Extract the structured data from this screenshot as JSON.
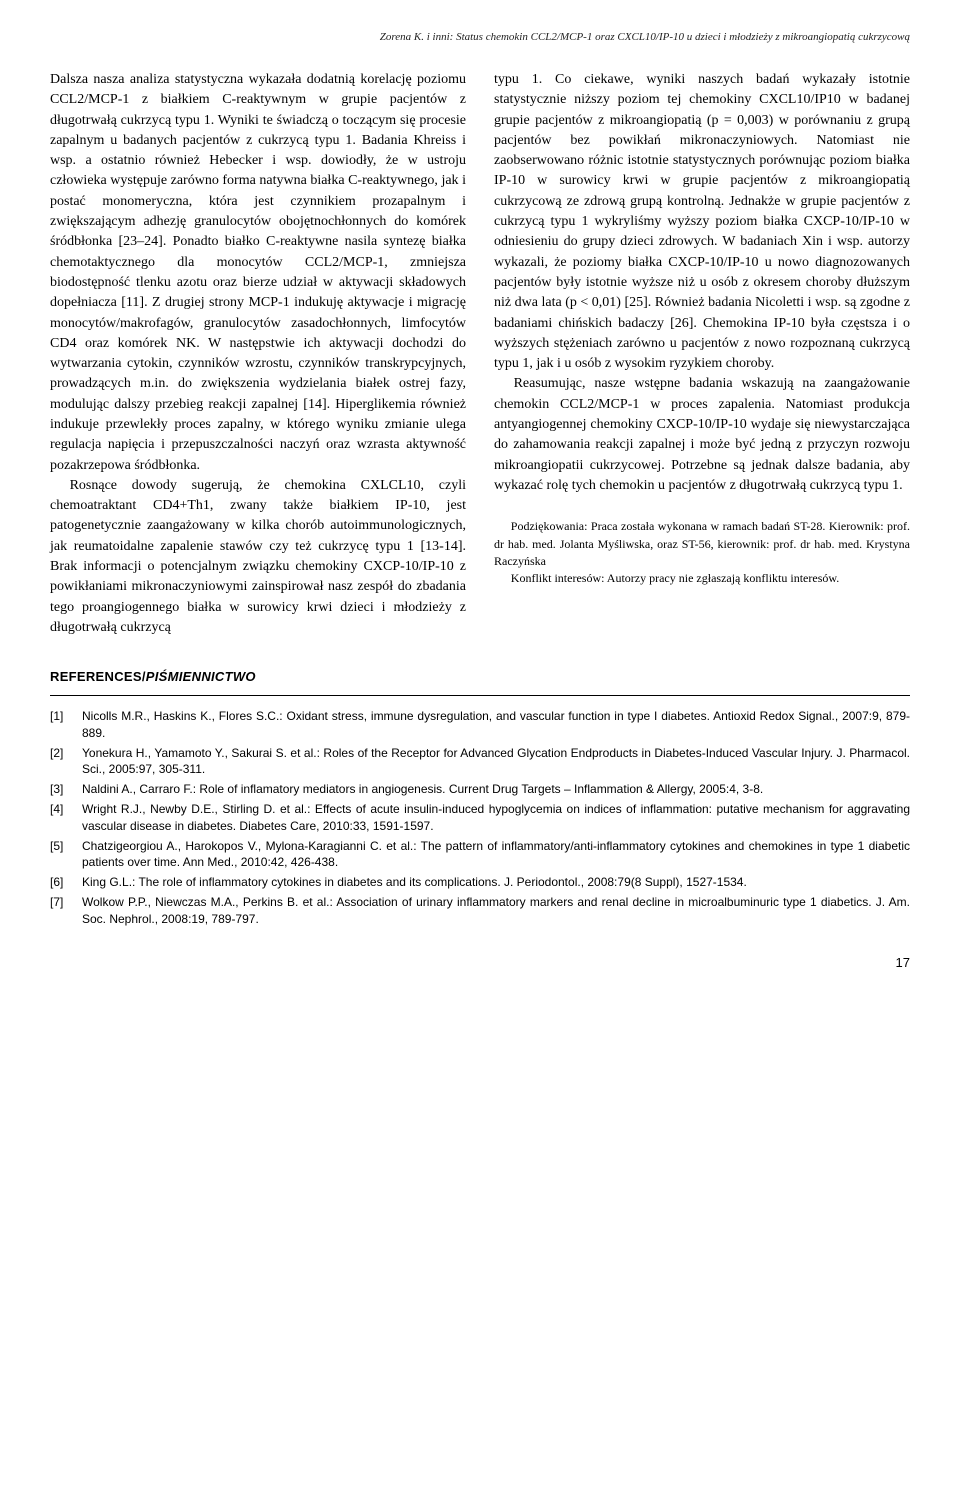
{
  "header": {
    "running_title": "Zorena K. i inni: Status chemokin CCL2/MCP-1 oraz CXCL10/IP-10 u dzieci i młodzieży z mikroangiopatią cukrzycową"
  },
  "body": {
    "left_col": {
      "p1": "Dalsza nasza analiza statystyczna wykazała dodatnią korelację poziomu CCL2/MCP-1 z białkiem C-reaktywnym w grupie pacjentów z długotrwałą cukrzycą typu 1. Wyniki te świadczą o toczącym się procesie zapalnym u badanych pacjentów z cukrzycą typu 1. Badania Khreiss i wsp. a ostatnio również Hebecker i wsp. dowiodły, że w ustroju człowieka występuje zarówno forma natywna białka C-reaktywnego, jak i postać monomeryczna, która jest czynnikiem prozapalnym i zwiększającym adhezję granulocytów obojętnochłonnych do komórek śródbłonka [23–24]. Ponadto białko C-reaktywne nasila syntezę białka chemotaktycznego dla monocytów CCL2/MCP-1, zmniejsza biodostępność tlenku azotu oraz bierze udział w aktywacji składowych dopełniacza [11]. Z drugiej strony MCP-1 indukuję aktywacje i migrację monocytów/makrofagów, granulocytów zasadochłonnych, limfocytów CD4 oraz komórek NK. W następstwie ich aktywacji dochodzi do wytwarzania cytokin, czynników wzrostu, czynników transkrypcyjnych, prowadzących m.in. do zwiększenia wydzielania białek ostrej fazy, modulując dalszy przebieg reakcji zapalnej [14]. Hiperglikemia również indukuje przewlekły proces zapalny, w którego wyniku zmianie ulega regulacja napięcia i przepuszczalności naczyń oraz wzrasta aktywność pozakrzepowa śródbłonka.",
      "p2": "Rosnące dowody sugerują, że chemokina CXLCL10, czyli chemoatraktant CD4+Th1, zwany także białkiem IP-10, jest patogenetycznie zaangażowany w kilka chorób autoimmunologicznych, jak reumatoidalne zapalenie stawów czy też cukrzycę typu 1 [13-14]. Brak informacji o potencjalnym związku chemokiny CXCP-10/IP-10 z powikłaniami mikronaczyniowymi zainspirował nasz zespół do zbadania tego proangiogennego białka w surowicy krwi dzieci i młodzieży z długotrwałą cukrzycą"
    },
    "right_col": {
      "p1": "typu 1. Co ciekawe, wyniki naszych badań wykazały istotnie statystycznie niższy poziom tej chemokiny CXCL10/IP10 w badanej grupie pacjentów z mikroangiopatią (p = 0,003) w porównaniu z grupą pacjentów bez powikłań mikronaczyniowych. Natomiast nie zaobserwowano różnic istotnie statystycznych porównując poziom białka IP-10 w surowicy krwi w grupie pacjentów z mikroangiopatią cukrzycową ze zdrową grupą kontrolną. Jednakże w grupie pacjentów z cukrzycą typu 1 wykryliśmy wyższy poziom białka CXCP-10/IP-10 w odniesieniu do grupy dzieci zdrowych. W badaniach Xin i wsp. autorzy wykazali, że poziomy białka CXCP-10/IP-10 u nowo diagnozowanych pacjentów były istotnie wyższe niż u osób z okresem choroby dłuższym niż dwa lata (p < 0,01) [25]. Również badania Nicoletti i wsp. są zgodne z badaniami chińskich badaczy [26]. Chemokina IP-10 była częstsza i o wyższych stężeniach zarówno u pacjentów z nowo rozpoznaną cukrzycą typu 1, jak i u osób z wysokim ryzykiem choroby.",
      "p2": "Reasumując, nasze wstępne badania wskazują na zaangażowanie chemokin CCL2/MCP-1 w proces zapalenia. Natomiast produkcja antyangiogennej chemokiny CXCP-10/IP-10 wydaje się niewystarczająca do zahamowania reakcji zapalnej i może być jedną z przyczyn rozwoju mikroangiopatii cukrzycowej. Potrzebne są jednak dalsze badania, aby wykazać rolę tych chemokin u pacjentów z długotrwałą cukrzycą typu 1."
    },
    "acknowledgements": {
      "p1": "Podziękowania: Praca została wykonana w ramach badań ST-28. Kierownik: prof. dr hab. med. Jolanta Myśliwska, oraz ST-56, kierownik: prof. dr hab. med. Krystyna Raczyńska",
      "p2": "Konflikt interesów: Autorzy pracy nie zgłaszają konfliktu interesów."
    }
  },
  "references": {
    "heading_plain": "REFERENCES/",
    "heading_italic": "PIŚMIENNICTWO",
    "items": [
      {
        "num": "[1]",
        "text": "Nicolls M.R., Haskins K., Flores S.C.: Oxidant stress, immune dysregulation, and vascular function in type I diabetes. Antioxid Redox Signal., 2007:9, 879-889."
      },
      {
        "num": "[2]",
        "text": "Yonekura H., Yamamoto Y., Sakurai S. et al.: Roles of the Receptor for Advanced Glycation Endproducts in Diabetes-Induced Vascular Injury. J. Pharmacol. Sci., 2005:97, 305-311."
      },
      {
        "num": "[3]",
        "text": "Naldini A., Carraro F.: Role of inflamatory mediators in angiogenesis. Current Drug Targets – Inflammation & Allergy, 2005:4, 3-8."
      },
      {
        "num": "[4]",
        "text": "Wright R.J., Newby D.E., Stirling D. et al.: Effects of acute insulin-induced hypoglycemia on indices of inflammation: putative mechanism for aggravating vascular disease in diabetes. Diabetes Care, 2010:33, 1591-1597."
      },
      {
        "num": "[5]",
        "text": "Chatzigeorgiou A., Harokopos V., Mylona-Karagianni C. et al.: The pattern of inflammatory/anti-inflammatory cytokines and chemokines in type 1 diabetic patients over time. Ann Med., 2010:42, 426-438."
      },
      {
        "num": "[6]",
        "text": "King G.L.: The role of inflammatory cytokines in diabetes and its complications. J. Periodontol., 2008:79(8 Suppl), 1527-1534."
      },
      {
        "num": "[7]",
        "text": "Wolkow P.P., Niewczas M.A., Perkins B. et al.: Association of urinary inflammatory markers and renal decline in microalbuminuric type 1 diabetics. J. Am. Soc. Nephrol., 2008:19, 789-797."
      }
    ]
  },
  "page_number": "17"
}
